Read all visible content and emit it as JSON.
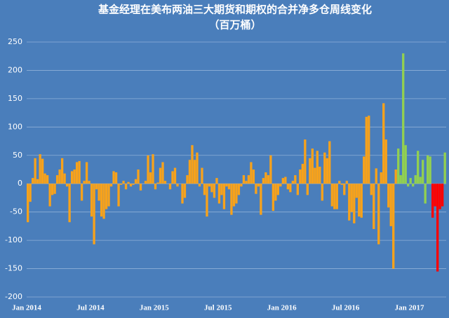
{
  "chart_data": {
    "type": "bar",
    "title": "基金经理在美布两油三大期货和期权的合并净多仓周线变化",
    "subtitle": "（百万桶）",
    "categories": [
      "Jan 2014",
      null,
      null,
      null,
      null,
      null,
      null,
      null,
      null,
      null,
      null,
      null,
      null,
      null,
      null,
      null,
      null,
      null,
      null,
      null,
      null,
      null,
      null,
      null,
      null,
      null,
      "Jul 2014",
      null,
      null,
      null,
      null,
      null,
      null,
      null,
      null,
      null,
      null,
      null,
      null,
      null,
      null,
      null,
      null,
      null,
      null,
      null,
      null,
      null,
      null,
      null,
      null,
      null,
      "Jan 2015",
      null,
      null,
      null,
      null,
      null,
      null,
      null,
      null,
      null,
      null,
      null,
      null,
      null,
      null,
      null,
      null,
      null,
      null,
      null,
      null,
      null,
      null,
      null,
      null,
      null,
      "Jul 2015",
      null,
      null,
      null,
      null,
      null,
      null,
      null,
      null,
      null,
      null,
      null,
      null,
      null,
      null,
      null,
      null,
      null,
      null,
      null,
      null,
      null,
      null,
      null,
      null,
      null,
      "Jan 2016",
      null,
      null,
      null,
      null,
      null,
      null,
      null,
      null,
      null,
      null,
      null,
      null,
      null,
      null,
      null,
      null,
      null,
      null,
      null,
      null,
      null,
      null,
      null,
      null,
      null,
      "Jul 2016",
      null,
      null,
      null,
      null,
      null,
      null,
      null,
      null,
      null,
      null,
      null,
      null,
      null,
      null,
      null,
      null,
      null,
      null,
      null,
      null,
      null,
      null,
      null,
      null,
      null,
      "Jan 2017",
      null,
      null,
      null,
      null,
      null,
      null,
      null,
      null,
      null,
      null,
      null,
      null,
      null,
      null
    ],
    "values": [
      -68,
      -32,
      10,
      45,
      8,
      52,
      44,
      18,
      15,
      -40,
      -20,
      -18,
      15,
      25,
      45,
      18,
      -5,
      -68,
      22,
      25,
      38,
      40,
      -30,
      5,
      38,
      5,
      -58,
      -107,
      -10,
      -30,
      -58,
      -62,
      -45,
      -40,
      -5,
      22,
      20,
      -40,
      -2,
      5,
      -10,
      3,
      -5,
      -2,
      8,
      25,
      -12,
      0,
      5,
      50,
      20,
      52,
      -10,
      2,
      28,
      38,
      5,
      0,
      -10,
      22,
      28,
      -5,
      0,
      -35,
      -25,
      15,
      42,
      68,
      42,
      55,
      -5,
      28,
      -20,
      -58,
      -5,
      -15,
      -25,
      10,
      -35,
      -20,
      -45,
      -5,
      -10,
      -55,
      -40,
      -35,
      -20,
      -5,
      15,
      5,
      15,
      38,
      25,
      -18,
      -5,
      -55,
      10,
      20,
      15,
      50,
      -48,
      -30,
      -20,
      -5,
      10,
      12,
      -10,
      -15,
      5,
      15,
      -20,
      25,
      35,
      78,
      -20,
      45,
      62,
      28,
      58,
      30,
      -30,
      55,
      45,
      75,
      -40,
      -45,
      -45,
      5,
      -2,
      -20,
      5,
      -65,
      -50,
      -70,
      -25,
      -58,
      -60,
      48,
      118,
      120,
      -20,
      -80,
      27,
      -107,
      20,
      142,
      78,
      -42,
      -75,
      -150,
      25,
      62,
      15,
      230,
      68,
      -5,
      10,
      -5,
      15,
      58,
      12,
      42,
      -35,
      50,
      48,
      -60,
      -40,
      -155,
      -45,
      -40,
      55
    ],
    "colors": [
      "#f7a21b",
      "#f7a21b",
      "#f7a21b",
      "#f7a21b",
      "#f7a21b",
      "#f7a21b",
      "#f7a21b",
      "#f7a21b",
      "#f7a21b",
      "#f7a21b",
      "#f7a21b",
      "#f7a21b",
      "#f7a21b",
      "#f7a21b",
      "#f7a21b",
      "#f7a21b",
      "#f7a21b",
      "#f7a21b",
      "#f7a21b",
      "#f7a21b",
      "#f7a21b",
      "#f7a21b",
      "#f7a21b",
      "#f7a21b",
      "#f7a21b",
      "#f7a21b",
      "#f7a21b",
      "#f7a21b",
      "#f7a21b",
      "#f7a21b",
      "#f7a21b",
      "#f7a21b",
      "#f7a21b",
      "#f7a21b",
      "#f7a21b",
      "#f7a21b",
      "#f7a21b",
      "#f7a21b",
      "#f7a21b",
      "#f7a21b",
      "#f7a21b",
      "#f7a21b",
      "#f7a21b",
      "#f7a21b",
      "#f7a21b",
      "#f7a21b",
      "#f7a21b",
      "#f7a21b",
      "#f7a21b",
      "#f7a21b",
      "#f7a21b",
      "#f7a21b",
      "#f7a21b",
      "#f7a21b",
      "#f7a21b",
      "#f7a21b",
      "#f7a21b",
      "#f7a21b",
      "#f7a21b",
      "#f7a21b",
      "#f7a21b",
      "#f7a21b",
      "#f7a21b",
      "#f7a21b",
      "#f7a21b",
      "#f7a21b",
      "#f7a21b",
      "#f7a21b",
      "#f7a21b",
      "#f7a21b",
      "#f7a21b",
      "#f7a21b",
      "#f7a21b",
      "#f7a21b",
      "#f7a21b",
      "#f7a21b",
      "#f7a21b",
      "#f7a21b",
      "#f7a21b",
      "#f7a21b",
      "#f7a21b",
      "#f7a21b",
      "#f7a21b",
      "#f7a21b",
      "#f7a21b",
      "#f7a21b",
      "#f7a21b",
      "#f7a21b",
      "#f7a21b",
      "#f7a21b",
      "#f7a21b",
      "#f7a21b",
      "#f7a21b",
      "#f7a21b",
      "#f7a21b",
      "#f7a21b",
      "#f7a21b",
      "#f7a21b",
      "#f7a21b",
      "#f7a21b",
      "#f7a21b",
      "#f7a21b",
      "#f7a21b",
      "#f7a21b",
      "#f7a21b",
      "#f7a21b",
      "#f7a21b",
      "#f7a21b",
      "#f7a21b",
      "#f7a21b",
      "#f7a21b",
      "#f7a21b",
      "#f7a21b",
      "#f7a21b",
      "#f7a21b",
      "#f7a21b",
      "#f7a21b",
      "#f7a21b",
      "#f7a21b",
      "#f7a21b",
      "#f7a21b",
      "#f7a21b",
      "#f7a21b",
      "#f7a21b",
      "#f7a21b",
      "#f7a21b",
      "#f7a21b",
      "#f7a21b",
      "#f7a21b",
      "#f7a21b",
      "#f7a21b",
      "#f7a21b",
      "#f7a21b",
      "#f7a21b",
      "#f7a21b",
      "#f7a21b",
      "#f7a21b",
      "#f7a21b",
      "#f7a21b",
      "#f7a21b",
      "#f7a21b",
      "#f7a21b",
      "#f7a21b",
      "#f7a21b",
      "#f7a21b",
      "#f7a21b",
      "#f7a21b",
      "#f7a21b",
      "#f7a21b",
      "#f7a21b",
      "#f7a21b",
      "#92d050",
      "#92d050",
      "#92d050",
      "#92d050",
      "#92d050",
      "#92d050",
      "#92d050",
      "#92d050",
      "#92d050",
      "#92d050",
      "#92d050",
      "#92d050",
      "#92d050",
      "#92d050",
      "#ff0000",
      "#ff0000",
      "#ff0000",
      "#ff0000",
      "#ff0000",
      "#92d050"
    ],
    "ylim": [
      -200,
      250
    ],
    "yticks": [
      250,
      200,
      150,
      100,
      50,
      0,
      -50,
      -100,
      -150,
      -200
    ],
    "grid": true
  }
}
